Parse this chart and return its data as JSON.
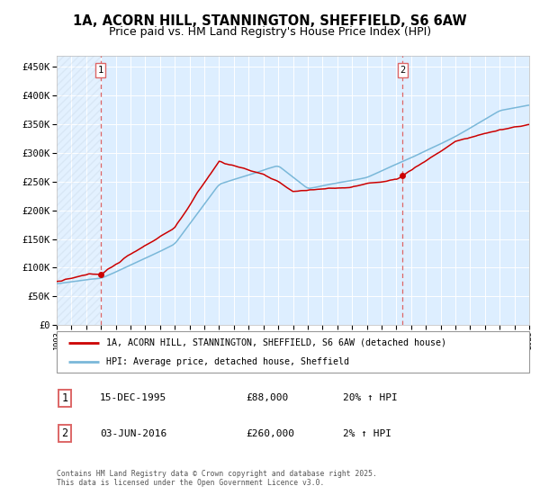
{
  "title": "1A, ACORN HILL, STANNINGTON, SHEFFIELD, S6 6AW",
  "subtitle": "Price paid vs. HM Land Registry's House Price Index (HPI)",
  "legend_line1": "1A, ACORN HILL, STANNINGTON, SHEFFIELD, S6 6AW (detached house)",
  "legend_line2": "HPI: Average price, detached house, Sheffield",
  "annotation1_label": "1",
  "annotation1_date": "15-DEC-1995",
  "annotation1_price": "£88,000",
  "annotation1_hpi": "20% ↑ HPI",
  "annotation2_label": "2",
  "annotation2_date": "03-JUN-2016",
  "annotation2_price": "£260,000",
  "annotation2_hpi": "2% ↑ HPI",
  "footer": "Contains HM Land Registry data © Crown copyright and database right 2025.\nThis data is licensed under the Open Government Licence v3.0.",
  "hpi_color": "#7ab8d9",
  "price_color": "#cc0000",
  "vline_color": "#dd6666",
  "dot_color": "#cc0000",
  "plot_bg": "#ddeeff",
  "grid_color": "#ffffff",
  "fig_bg": "#ffffff",
  "ylim": [
    0,
    470000
  ],
  "yticks": [
    0,
    50000,
    100000,
    150000,
    200000,
    250000,
    300000,
    350000,
    400000,
    450000
  ],
  "x_start_year": 1993,
  "x_end_year": 2025,
  "vline1_year": 1995.96,
  "vline2_year": 2016.42,
  "dot1_year": 1995.96,
  "dot1_value": 88000,
  "dot2_year": 2016.42,
  "dot2_value": 260000,
  "title_fontsize": 10.5,
  "subtitle_fontsize": 9
}
